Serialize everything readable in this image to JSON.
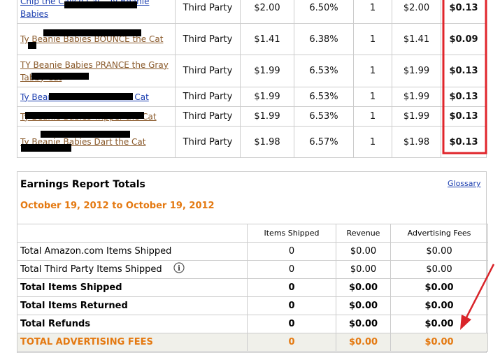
{
  "orders": {
    "rows": [
      [
        "Chip the Calico Cat - Ty Beanie Babies",
        "Third Party",
        "$2.00",
        "6.50%",
        "1",
        "$2.00",
        "$0.13"
      ],
      [
        "Ty Beanie Babies BOUNCE the Cat",
        "Third Party",
        "$1.41",
        "6.38%",
        "1",
        "$1.41",
        "$0.09"
      ],
      [
        "TY Beanie Babies PRANCE the Gray Tabby Cat",
        "Third Party",
        "$1.99",
        "6.53%",
        "1",
        "$1.99",
        "$0.13"
      ],
      [
        "Ty Beanie Babies SCAT the Cat",
        "Third Party",
        "$1.99",
        "6.53%",
        "1",
        "$1.99",
        "$0.13"
      ],
      [
        "Ty Beanie Babies Tripper the Cat",
        "Third Party",
        "$1.99",
        "6.53%",
        "1",
        "$1.99",
        "$0.13"
      ],
      [
        "Ty Beanie Babies Dart the Cat",
        "Third Party",
        "$1.98",
        "6.57%",
        "1",
        "$1.98",
        "$0.13"
      ]
    ]
  },
  "totals": {
    "title": "Earnings Report Totals",
    "glossary": "Glossary",
    "date_range": "October 19, 2012 to October 19, 2012",
    "headers": [
      "Items Shipped",
      "Revenue",
      "Advertising Fees"
    ],
    "rows": [
      [
        "Total Amazon.com Items Shipped",
        "0",
        "$0.00",
        "$0.00"
      ],
      [
        "Total Third Party Items Shipped",
        "0",
        "$0.00",
        "$0.00"
      ],
      [
        "Total Items Shipped",
        "0",
        "$0.00",
        "$0.00"
      ],
      [
        "Total Items Returned",
        "0",
        "$0.00",
        "$0.00"
      ],
      [
        "Total Refunds",
        "0",
        "$0.00",
        "$0.00"
      ],
      [
        "TOTAL ADVERTISING FEES",
        "0",
        "$0.00",
        "$0.00"
      ]
    ]
  }
}
